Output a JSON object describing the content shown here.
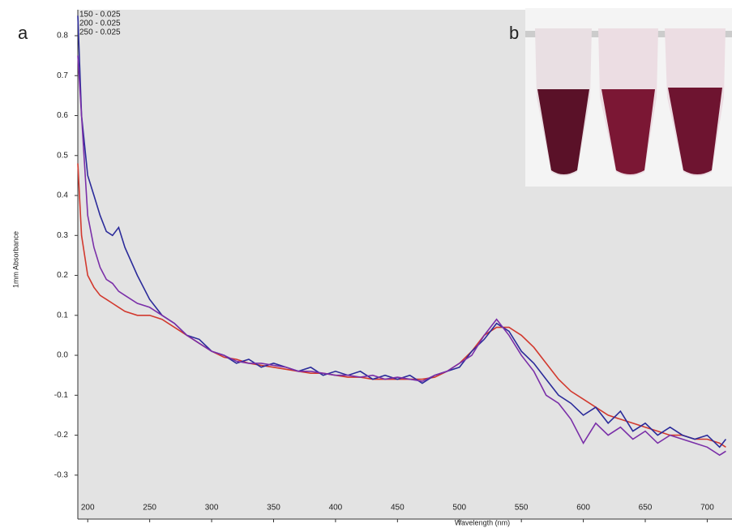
{
  "chart_data": {
    "type": "line",
    "panel_label": "a",
    "inset_label": "b",
    "x_label": "Wavelength (nm)",
    "y_label": "1mm Absorbance",
    "xlim": [
      192,
      720
    ],
    "ylim": [
      -0.41,
      0.865
    ],
    "xticks": [
      200,
      250,
      300,
      350,
      400,
      450,
      500,
      550,
      600,
      650,
      700
    ],
    "yticks": [
      0.8,
      0.7,
      0.6,
      0.5,
      0.4,
      0.3,
      0.2,
      0.1,
      {
        "value": 0,
        "label": "0.0"
      },
      -0.1,
      -0.2,
      -0.3
    ],
    "x": [
      192,
      195,
      200,
      205,
      210,
      215,
      220,
      225,
      230,
      240,
      250,
      260,
      270,
      280,
      290,
      300,
      310,
      320,
      330,
      340,
      350,
      360,
      370,
      380,
      390,
      400,
      410,
      420,
      430,
      440,
      450,
      460,
      470,
      480,
      490,
      500,
      510,
      520,
      530,
      540,
      550,
      560,
      570,
      580,
      590,
      600,
      610,
      620,
      630,
      640,
      650,
      660,
      670,
      680,
      690,
      700,
      710,
      715
    ],
    "series": [
      {
        "name": "150 - 0.025",
        "color": "#d2392e",
        "values": [
          0.48,
          0.3,
          0.2,
          0.17,
          0.15,
          0.14,
          0.13,
          0.12,
          0.11,
          0.1,
          0.1,
          0.09,
          0.07,
          0.05,
          0.03,
          0.01,
          -0.005,
          -0.01,
          -0.02,
          -0.025,
          -0.03,
          -0.035,
          -0.04,
          -0.045,
          -0.045,
          -0.05,
          -0.055,
          -0.055,
          -0.06,
          -0.06,
          -0.06,
          -0.06,
          -0.06,
          -0.055,
          -0.04,
          -0.02,
          0.01,
          0.05,
          0.07,
          0.07,
          0.05,
          0.02,
          -0.02,
          -0.06,
          -0.09,
          -0.11,
          -0.13,
          -0.15,
          -0.16,
          -0.17,
          -0.18,
          -0.19,
          -0.2,
          -0.2,
          -0.21,
          -0.21,
          -0.22,
          -0.23
        ]
      },
      {
        "name": "200 - 0.025",
        "color": "#2b2b9a",
        "values": [
          0.85,
          0.6,
          0.45,
          0.4,
          0.35,
          0.31,
          0.3,
          0.32,
          0.27,
          0.2,
          0.14,
          0.1,
          0.08,
          0.05,
          0.04,
          0.01,
          0.0,
          -0.02,
          -0.01,
          -0.03,
          -0.02,
          -0.03,
          -0.04,
          -0.03,
          -0.05,
          -0.04,
          -0.05,
          -0.04,
          -0.06,
          -0.05,
          -0.06,
          -0.05,
          -0.07,
          -0.05,
          -0.04,
          -0.03,
          0.01,
          0.04,
          0.08,
          0.06,
          0.01,
          -0.02,
          -0.06,
          -0.1,
          -0.12,
          -0.15,
          -0.13,
          -0.17,
          -0.14,
          -0.19,
          -0.17,
          -0.2,
          -0.18,
          -0.2,
          -0.21,
          -0.2,
          -0.23,
          -0.21
        ]
      },
      {
        "name": "250 - 0.025",
        "color": "#7a2fa8",
        "values": [
          0.75,
          0.6,
          0.35,
          0.27,
          0.22,
          0.19,
          0.18,
          0.16,
          0.15,
          0.13,
          0.12,
          0.1,
          0.08,
          0.05,
          0.03,
          0.01,
          0.0,
          -0.015,
          -0.02,
          -0.02,
          -0.025,
          -0.03,
          -0.04,
          -0.04,
          -0.045,
          -0.05,
          -0.05,
          -0.055,
          -0.05,
          -0.06,
          -0.055,
          -0.06,
          -0.065,
          -0.05,
          -0.04,
          -0.02,
          0.0,
          0.05,
          0.09,
          0.05,
          0.0,
          -0.04,
          -0.1,
          -0.12,
          -0.16,
          -0.22,
          -0.17,
          -0.2,
          -0.18,
          -0.21,
          -0.19,
          -0.22,
          -0.2,
          -0.21,
          -0.22,
          -0.23,
          -0.25,
          -0.24
        ]
      }
    ]
  }
}
